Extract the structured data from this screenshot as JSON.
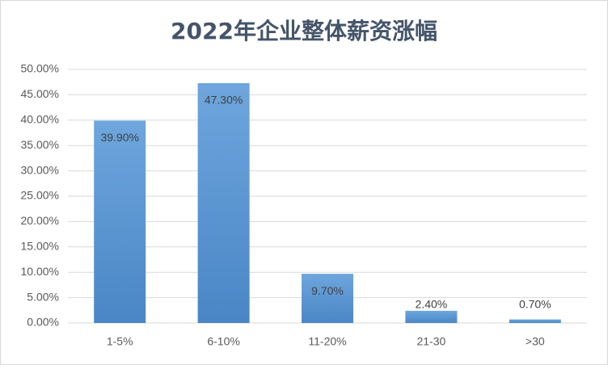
{
  "chart_data": {
    "type": "bar",
    "title": "2022年企业整体薪资涨幅",
    "categories": [
      "1-5%",
      "6-10%",
      "11-20%",
      "21-30",
      ">30"
    ],
    "values": [
      39.9,
      47.3,
      9.7,
      2.4,
      0.7
    ],
    "value_labels": [
      "39.90%",
      "47.30%",
      "9.70%",
      "2.40%",
      "0.70%"
    ],
    "color": "#5b9bd5",
    "ylim": [
      0,
      50
    ],
    "yticks": [
      {
        "value": 0,
        "label": "0.00%"
      },
      {
        "value": 5,
        "label": "5.00%"
      },
      {
        "value": 10,
        "label": "10.00%"
      },
      {
        "value": 15,
        "label": "15.00%"
      },
      {
        "value": 20,
        "label": "20.00%"
      },
      {
        "value": 25,
        "label": "25.00%"
      },
      {
        "value": 30,
        "label": "30.00%"
      },
      {
        "value": 35,
        "label": "35.00%"
      },
      {
        "value": 40,
        "label": "40.00%"
      },
      {
        "value": 45,
        "label": "45.00%"
      },
      {
        "value": 50,
        "label": "50.00%"
      }
    ],
    "grid": true
  }
}
